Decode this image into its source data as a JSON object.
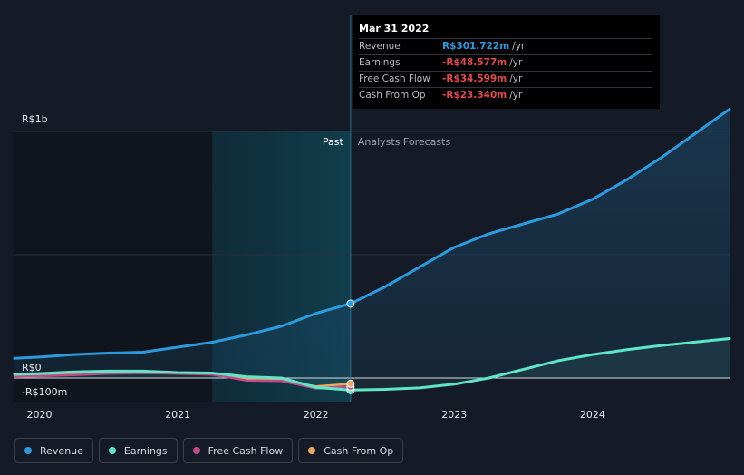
{
  "tooltip": {
    "date": "Mar 31 2022",
    "rows": [
      {
        "label": "Revenue",
        "value": "R$301.722m",
        "unit": "/yr",
        "color": "#2b9be0"
      },
      {
        "label": "Earnings",
        "value": "-R$48.577m",
        "unit": "/yr",
        "color": "#e64b4b"
      },
      {
        "label": "Free Cash Flow",
        "value": "-R$34.599m",
        "unit": "/yr",
        "color": "#e64b4b"
      },
      {
        "label": "Cash From Op",
        "value": "-R$23.340m",
        "unit": "/yr",
        "color": "#e64b4b"
      }
    ]
  },
  "legend": [
    {
      "label": "Revenue",
      "color": "#2b9be0",
      "icon": "dot"
    },
    {
      "label": "Earnings",
      "color": "#5ee6c8",
      "icon": "dot"
    },
    {
      "label": "Free Cash Flow",
      "color": "#c04a8a",
      "icon": "dot"
    },
    {
      "label": "Cash From Op",
      "color": "#e8a862",
      "icon": "dot"
    }
  ],
  "chart_data": {
    "type": "line",
    "y_unit": "R$m",
    "ylim": [
      -100,
      1000
    ],
    "y_ticks": [
      {
        "value": 1000,
        "label": "R$1b"
      },
      {
        "value": 0,
        "label": "R$0"
      },
      {
        "value": -100,
        "label": "-R$100m"
      }
    ],
    "x_ticks": [
      "2020",
      "2021",
      "2022",
      "2023",
      "2024"
    ],
    "x_range": [
      2019.82,
      2024.99
    ],
    "annotations": {
      "past": "Past",
      "forecast": "Analysts Forecasts"
    },
    "divider_x": 2022.25,
    "shaded_range": [
      2021.25,
      2022.25
    ],
    "series": [
      {
        "name": "Revenue",
        "color": "#2b9be0",
        "points": [
          [
            2019.82,
            80
          ],
          [
            2020.0,
            85
          ],
          [
            2020.25,
            95
          ],
          [
            2020.5,
            101
          ],
          [
            2020.75,
            105
          ],
          [
            2021.0,
            125
          ],
          [
            2021.25,
            145
          ],
          [
            2021.5,
            175
          ],
          [
            2021.75,
            210
          ],
          [
            2022.0,
            262
          ],
          [
            2022.25,
            301.7
          ],
          [
            2022.5,
            370
          ],
          [
            2022.75,
            450
          ],
          [
            2023.0,
            530
          ],
          [
            2023.25,
            585
          ],
          [
            2023.5,
            625
          ],
          [
            2023.75,
            665
          ],
          [
            2024.0,
            725
          ],
          [
            2024.25,
            805
          ],
          [
            2024.5,
            895
          ],
          [
            2024.75,
            995
          ],
          [
            2024.99,
            1090
          ]
        ]
      },
      {
        "name": "Earnings",
        "color": "#5ee6c8",
        "points": [
          [
            2019.82,
            15
          ],
          [
            2020.0,
            18
          ],
          [
            2020.25,
            25
          ],
          [
            2020.5,
            28
          ],
          [
            2020.75,
            28
          ],
          [
            2021.0,
            22
          ],
          [
            2021.25,
            20
          ],
          [
            2021.5,
            5
          ],
          [
            2021.75,
            0
          ],
          [
            2022.0,
            -38
          ],
          [
            2022.25,
            -48.6
          ],
          [
            2022.5,
            -46
          ],
          [
            2022.75,
            -40
          ],
          [
            2023.0,
            -25
          ],
          [
            2023.25,
            0
          ],
          [
            2023.5,
            35
          ],
          [
            2023.75,
            70
          ],
          [
            2024.0,
            95
          ],
          [
            2024.25,
            115
          ],
          [
            2024.5,
            132
          ],
          [
            2024.75,
            146
          ],
          [
            2024.99,
            160
          ]
        ]
      },
      {
        "name": "Free Cash Flow",
        "color": "#c04a8a",
        "points": [
          [
            2019.82,
            5
          ],
          [
            2020.0,
            8
          ],
          [
            2020.25,
            12
          ],
          [
            2020.5,
            18
          ],
          [
            2020.75,
            20
          ],
          [
            2021.0,
            18
          ],
          [
            2021.25,
            14
          ],
          [
            2021.5,
            -10
          ],
          [
            2021.75,
            -12
          ],
          [
            2022.0,
            -42
          ],
          [
            2022.25,
            -34.6
          ]
        ]
      },
      {
        "name": "Cash From Op",
        "color": "#e8a862",
        "points": [
          [
            2019.82,
            8
          ],
          [
            2020.0,
            10
          ],
          [
            2020.25,
            15
          ],
          [
            2020.5,
            20
          ],
          [
            2020.75,
            22
          ],
          [
            2021.0,
            20
          ],
          [
            2021.25,
            18
          ],
          [
            2021.5,
            -5
          ],
          [
            2021.75,
            -8
          ],
          [
            2022.0,
            -34
          ],
          [
            2022.25,
            -23.3
          ]
        ]
      }
    ]
  }
}
